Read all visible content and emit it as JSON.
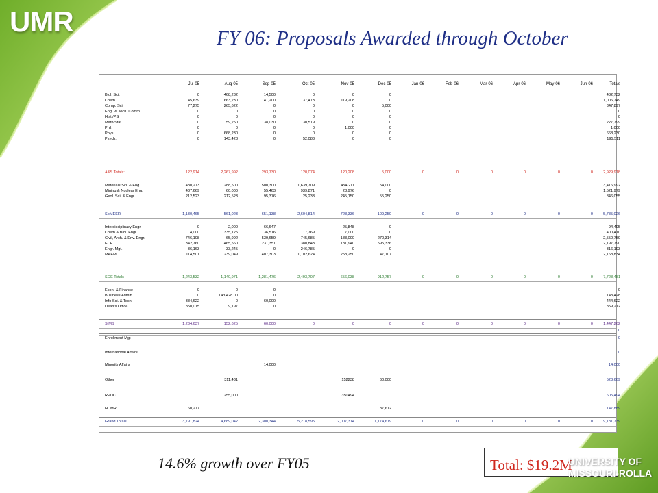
{
  "logo_text": "UMR",
  "title": "FY 06: Proposals Awarded through October",
  "table": {
    "columns": [
      "Jul-05",
      "Aug-05",
      "Sep-05",
      "Oct-05",
      "Nov-05",
      "Dec-05",
      "Jan-06",
      "Feb-06",
      "Mar-06",
      "Apr-06",
      "May-06",
      "Jun-06",
      "Totals"
    ],
    "rows": [
      {
        "label": "Biol. Sci.",
        "values": [
          "0",
          "468,232",
          "14,500",
          "0",
          "0",
          "0",
          "",
          "",
          "",
          "",
          "",
          "",
          "482,732"
        ]
      },
      {
        "label": "Chem.",
        "values": [
          "45,639",
          "663,230",
          "141,200",
          "37,473",
          "119,208",
          "0",
          "",
          "",
          "",
          "",
          "",
          "",
          "1,006,749"
        ]
      },
      {
        "label": "Comp. Sci.",
        "values": [
          "77,275",
          "265,622",
          "0",
          "0",
          "0",
          "5,000",
          "",
          "",
          "",
          "",
          "",
          "",
          "347,897"
        ]
      },
      {
        "label": "Engl. & Tech. Comm.",
        "values": [
          "0",
          "0",
          "0",
          "0",
          "0",
          "0",
          "",
          "",
          "",
          "",
          "",
          "",
          "0"
        ]
      },
      {
        "label": "Hist./PS",
        "values": [
          "0",
          "0",
          "0",
          "0",
          "0",
          "0",
          "",
          "",
          "",
          "",
          "",
          "",
          "0"
        ]
      },
      {
        "label": "Math/Stat",
        "values": [
          "0",
          "59,250",
          "138,030",
          "30,519",
          "0",
          "0",
          "",
          "",
          "",
          "",
          "",
          "",
          "227,799"
        ]
      },
      {
        "label": "Phil.",
        "values": [
          "0",
          "0",
          "0",
          "0",
          "1,000",
          "0",
          "",
          "",
          "",
          "",
          "",
          "",
          "1,000"
        ]
      },
      {
        "label": "Phys.",
        "values": [
          "0",
          "668,230",
          "0",
          "0",
          "0",
          "0",
          "",
          "",
          "",
          "",
          "",
          "",
          "668,230"
        ]
      },
      {
        "label": "Psych.",
        "values": [
          "0",
          "143,428",
          "0",
          "52,083",
          "0",
          "0",
          "",
          "",
          "",
          "",
          "",
          "",
          "195,511"
        ]
      },
      {
        "label": "A&S Totals:",
        "total": "red",
        "values": [
          "122,914",
          "2,267,992",
          "293,730",
          "120,074",
          "120,208",
          "5,000",
          "0",
          "0",
          "0",
          "0",
          "0",
          "0",
          "2,929,918"
        ]
      },
      {
        "label": "Materials Sci. & Eng.",
        "values": [
          "480,273",
          "288,500",
          "500,300",
          "1,639,709",
          "454,211",
          "54,000",
          "",
          "",
          "",
          "",
          "",
          "",
          "3,416,992"
        ]
      },
      {
        "label": "Mining & Nuclear Eng.",
        "values": [
          "437,669",
          "60,000",
          "55,463",
          "939,871",
          "28,976",
          "0",
          "",
          "",
          "",
          "",
          "",
          "",
          "1,521,979"
        ]
      },
      {
        "label": "Geol. Sci. & Engr.",
        "values": [
          "212,523",
          "212,523",
          "95,376",
          "25,233",
          "245,150",
          "55,250",
          "",
          "",
          "",
          "",
          "",
          "",
          "846,055"
        ]
      },
      {
        "label": "SoMEER",
        "total": "blue",
        "values": [
          "1,130,465",
          "561,023",
          "651,138",
          "2,604,814",
          "728,336",
          "109,250",
          "0",
          "0",
          "0",
          "0",
          "0",
          "0",
          "5,785,026"
        ]
      },
      {
        "label": "Interdisciplinary Engr",
        "values": [
          "0",
          "2,000",
          "66,647",
          "",
          "25,848",
          "0",
          "",
          "",
          "",
          "",
          "",
          "",
          "94,495"
        ]
      },
      {
        "label": "Chem & Biol. Engr.",
        "values": [
          "4,000",
          "335,125",
          "36,516",
          "17,769",
          "7,000",
          "0",
          "",
          "",
          "",
          "",
          "",
          "",
          "400,410"
        ]
      },
      {
        "label": "Civil, Arch. & Env. Engr.",
        "values": [
          "746,108",
          "65,992",
          "539,659",
          "745,685",
          "183,000",
          "270,314",
          "",
          "",
          "",
          "",
          "",
          "",
          "2,550,759"
        ]
      },
      {
        "label": "ECE",
        "values": [
          "342,760",
          "465,560",
          "231,351",
          "380,843",
          "181,940",
          "595,336",
          "",
          "",
          "",
          "",
          "",
          "",
          "2,197,790"
        ]
      },
      {
        "label": "Engr. Mgt.",
        "values": [
          "36,163",
          "33,245",
          "0",
          "246,785",
          "0",
          "0",
          "",
          "",
          "",
          "",
          "",
          "",
          "316,193"
        ]
      },
      {
        "label": "MAEM",
        "values": [
          "114,501",
          "239,049",
          "407,303",
          "1,102,624",
          "258,250",
          "47,107",
          "",
          "",
          "",
          "",
          "",
          "",
          "2,168,834"
        ]
      },
      {
        "label": "SOE Totals",
        "total": "green",
        "values": [
          "1,243,532",
          "1,140,971",
          "1,281,476",
          "2,493,707",
          "656,038",
          "912,757",
          "0",
          "0",
          "0",
          "0",
          "0",
          "0",
          "7,728,481"
        ]
      },
      {
        "label": "Econ. & Finance",
        "values": [
          "0",
          "0",
          "0",
          "",
          "",
          "",
          "",
          "",
          "",
          "",
          "",
          "",
          "0"
        ]
      },
      {
        "label": "Business Admin.",
        "values": [
          "0",
          "143,428.00",
          "0",
          "",
          "",
          "",
          "",
          "",
          "",
          "",
          "",
          "",
          "143,428"
        ]
      },
      {
        "label": "Info Sci. & Tech.",
        "values": [
          "384,622",
          "0",
          "60,000",
          "",
          "",
          "",
          "",
          "",
          "",
          "",
          "",
          "",
          "444,622"
        ]
      },
      {
        "label": "Dean's Office",
        "values": [
          "850,015",
          "9,197",
          "0",
          "",
          "",
          "",
          "",
          "",
          "",
          "",
          "",
          "",
          "859,212"
        ]
      },
      {
        "label": "SIMS",
        "total": "purple",
        "values": [
          "1,234,637",
          "152,625",
          "60,000",
          "0",
          "0",
          "0",
          "0",
          "0",
          "0",
          "0",
          "0",
          "0",
          "1,447,262"
        ]
      },
      {
        "label": "",
        "total": "navy",
        "values": [
          "",
          "",
          "",
          "",
          "",
          "",
          "",
          "",
          "",
          "",
          "",
          "",
          "0"
        ]
      },
      {
        "label": "Enrollment Mgt",
        "values": [
          "",
          "",
          "",
          "",
          "",
          "",
          "",
          "",
          "",
          "",
          "",
          "",
          "0"
        ]
      },
      {
        "label": "International Affairs",
        "values": [
          "",
          "",
          "",
          "",
          "",
          "",
          "",
          "",
          "",
          "",
          "",
          "",
          "0"
        ]
      },
      {
        "label": "Minority Affairs",
        "values": [
          "",
          "",
          "14,000",
          "",
          "",
          "",
          "",
          "",
          "",
          "",
          "",
          "",
          "14,000"
        ]
      },
      {
        "label": "Other",
        "values": [
          "",
          "311,431",
          "",
          "",
          "152238",
          "60,000",
          "",
          "",
          "",
          "",
          "",
          "",
          "523,669"
        ]
      },
      {
        "label": "RPDC",
        "values": [
          "",
          "255,000",
          "",
          "",
          "350494",
          "",
          "",
          "",
          "",
          "",
          "",
          "",
          "605,494"
        ]
      },
      {
        "label": "HUMR",
        "values": [
          "60,277",
          "",
          "",
          "",
          "",
          "87,612",
          "",
          "",
          "",
          "",
          "",
          "",
          "147,889"
        ]
      },
      {
        "label": "Grand Totals:",
        "total": "navy",
        "values": [
          "3,791,824",
          "4,689,042",
          "2,300,344",
          "5,218,595",
          "2,007,314",
          "1,174,619",
          "0",
          "0",
          "0",
          "0",
          "0",
          "0",
          "19,181,739"
        ]
      }
    ]
  },
  "growth_text": "14.6% growth over FY05",
  "total_text": "Total:  $19.2M",
  "university_line1": "UNIVERSITY OF",
  "university_line2": "MISSOURI-ROLLA",
  "colors": {
    "title": "#1f2f86",
    "accent_green": "#8cc63f",
    "red": "#d0281f",
    "blue": "#1f2f86"
  }
}
